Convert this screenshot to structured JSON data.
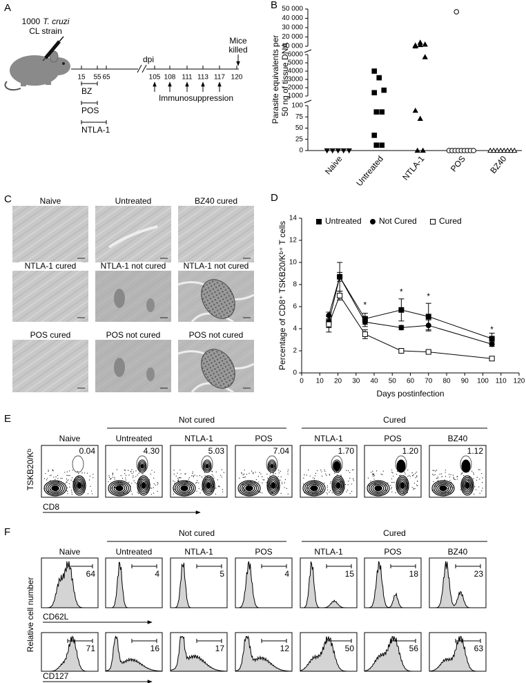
{
  "panel_a": {
    "label": "A",
    "inoculum": "1000",
    "species": "T. cruzi",
    "strain": "CL strain",
    "dpi": "dpi",
    "endpoint_lines": [
      "Mice",
      "killed"
    ],
    "ticks": [
      15,
      55,
      65,
      105,
      108,
      111,
      113,
      117,
      120
    ],
    "treatments": [
      "BZ",
      "POS",
      "NTLA-1"
    ],
    "immunosuppression": "Immunosuppression"
  },
  "chart_data": [
    {
      "type": "strip",
      "panel": "B",
      "ylabel_lines": [
        "Parasite equivalents per",
        "50 ng of tissue DNA"
      ],
      "categories": [
        "Naive",
        "Untreated",
        "NTLA-1",
        "POS",
        "BZ40"
      ],
      "markers": [
        "triangle-down",
        "square",
        "triangle",
        "circle-open",
        "triangle-open"
      ],
      "color": "#000000",
      "values": [
        [
          0,
          0,
          0,
          0,
          0
        ],
        [
          4000,
          3200,
          1700,
          1400,
          86,
          86,
          34,
          12,
          12
        ],
        [
          11000,
          14000,
          12000,
          10000,
          11500,
          5700,
          89,
          71,
          0,
          0
        ],
        [
          47000,
          0,
          0,
          0,
          0,
          0,
          0,
          0,
          0,
          0
        ],
        [
          0,
          0,
          0,
          0,
          0,
          0,
          0,
          0
        ]
      ],
      "axis_segments": [
        {
          "ylim": [
            0,
            100
          ],
          "yticks": [
            0,
            25,
            50,
            75,
            100
          ]
        },
        {
          "ylim": [
            1000,
            6000
          ],
          "yticks": [
            1000,
            2000,
            3000,
            4000,
            5000,
            6000
          ]
        },
        {
          "ylim": [
            10000,
            50000
          ],
          "yticks": [
            {
              "value": 10000,
              "label": "10 000"
            },
            {
              "value": 20000,
              "label": "20 000"
            },
            {
              "value": 30000,
              "label": "30 000"
            },
            {
              "value": 40000,
              "label": "40 000"
            },
            {
              "value": 50000,
              "label": "50 000"
            }
          ]
        }
      ]
    },
    {
      "type": "line",
      "panel": "D",
      "xlabel": "Days postinfection",
      "ylabel": "Percentage of CD8⁺ TSKB20/Kᵇ⁺ T cells",
      "x": [
        15,
        21,
        35,
        55,
        70,
        105
      ],
      "series": [
        {
          "name": "Untreated",
          "marker": "square",
          "color": "#000000",
          "values": [
            4.6,
            8.7,
            4.9,
            5.7,
            5.1,
            3.1
          ],
          "errors": [
            0.5,
            1.3,
            0.5,
            1.0,
            1.2,
            0.5
          ]
        },
        {
          "name": "Not Cured",
          "marker": "circle",
          "color": "#000000",
          "values": [
            5.2,
            8.7,
            4.6,
            4.1,
            4.3,
            2.6
          ],
          "errors": [
            0.3,
            0.4,
            0.4,
            0.2,
            0.5,
            0.2
          ]
        },
        {
          "name": "Cured",
          "marker": "square-open",
          "color": "#000000",
          "values": [
            4.4,
            7.0,
            3.5,
            2.0,
            1.9,
            1.3
          ],
          "errors": [
            0.7,
            0.4,
            0.4,
            0.1,
            0.1,
            0.1
          ]
        }
      ],
      "xlim": [
        0,
        120
      ],
      "xticks": [
        0,
        10,
        20,
        30,
        40,
        50,
        60,
        70,
        80,
        90,
        100,
        110,
        120
      ],
      "ylim": [
        0,
        14
      ],
      "yticks": [
        0,
        2,
        4,
        6,
        8,
        10,
        12,
        14
      ],
      "legend": "upper left",
      "annotations": [
        {
          "x": 35,
          "y": 6.1,
          "text": "*"
        },
        {
          "x": 55,
          "y": 7.3,
          "text": "*"
        },
        {
          "x": 70,
          "y": 6.9,
          "text": "*"
        },
        {
          "x": 105,
          "y": 3.9,
          "text": "*"
        }
      ]
    }
  ],
  "panel_c": {
    "label": "C",
    "images": [
      [
        "Naive",
        "Untreated",
        "BZ40 cured"
      ],
      [
        "NTLA-1 cured",
        "NTLA-1 not cured",
        "NTLA-1  not cured"
      ],
      [
        "POS cured",
        "POS not cured",
        "POS  not cured"
      ]
    ]
  },
  "panel_e": {
    "label": "E",
    "y_axis": "TSKB20/Kᵇ",
    "x_axis": "CD8",
    "naive": {
      "name": "Naive",
      "value": "0.04"
    },
    "groups": [
      {
        "name": "Not cured",
        "samples": [
          {
            "name": "Untreated",
            "value": "4.30"
          },
          {
            "name": "NTLA-1",
            "value": "5.03"
          },
          {
            "name": "POS",
            "value": "7.04"
          }
        ]
      },
      {
        "name": "Cured",
        "samples": [
          {
            "name": "NTLA-1",
            "value": "1.70"
          },
          {
            "name": "POS",
            "value": "1.20"
          },
          {
            "name": "BZ40",
            "value": "1.12"
          }
        ]
      }
    ]
  },
  "panel_f": {
    "label": "F",
    "y_axis": "Relative cell number",
    "naive": "Naive",
    "groups": [
      {
        "name": "Not cured",
        "samples": [
          "Untreated",
          "NTLA-1",
          "POS"
        ]
      },
      {
        "name": "Cured",
        "samples": [
          "NTLA-1",
          "POS",
          "BZ40"
        ]
      }
    ],
    "rows": [
      {
        "marker": "CD62L",
        "values": [
          "64",
          "4",
          "5",
          "4",
          "15",
          "18",
          "23"
        ]
      },
      {
        "marker": "CD127",
        "values": [
          "71",
          "16",
          "17",
          "12",
          "50",
          "56",
          "63"
        ]
      }
    ]
  }
}
